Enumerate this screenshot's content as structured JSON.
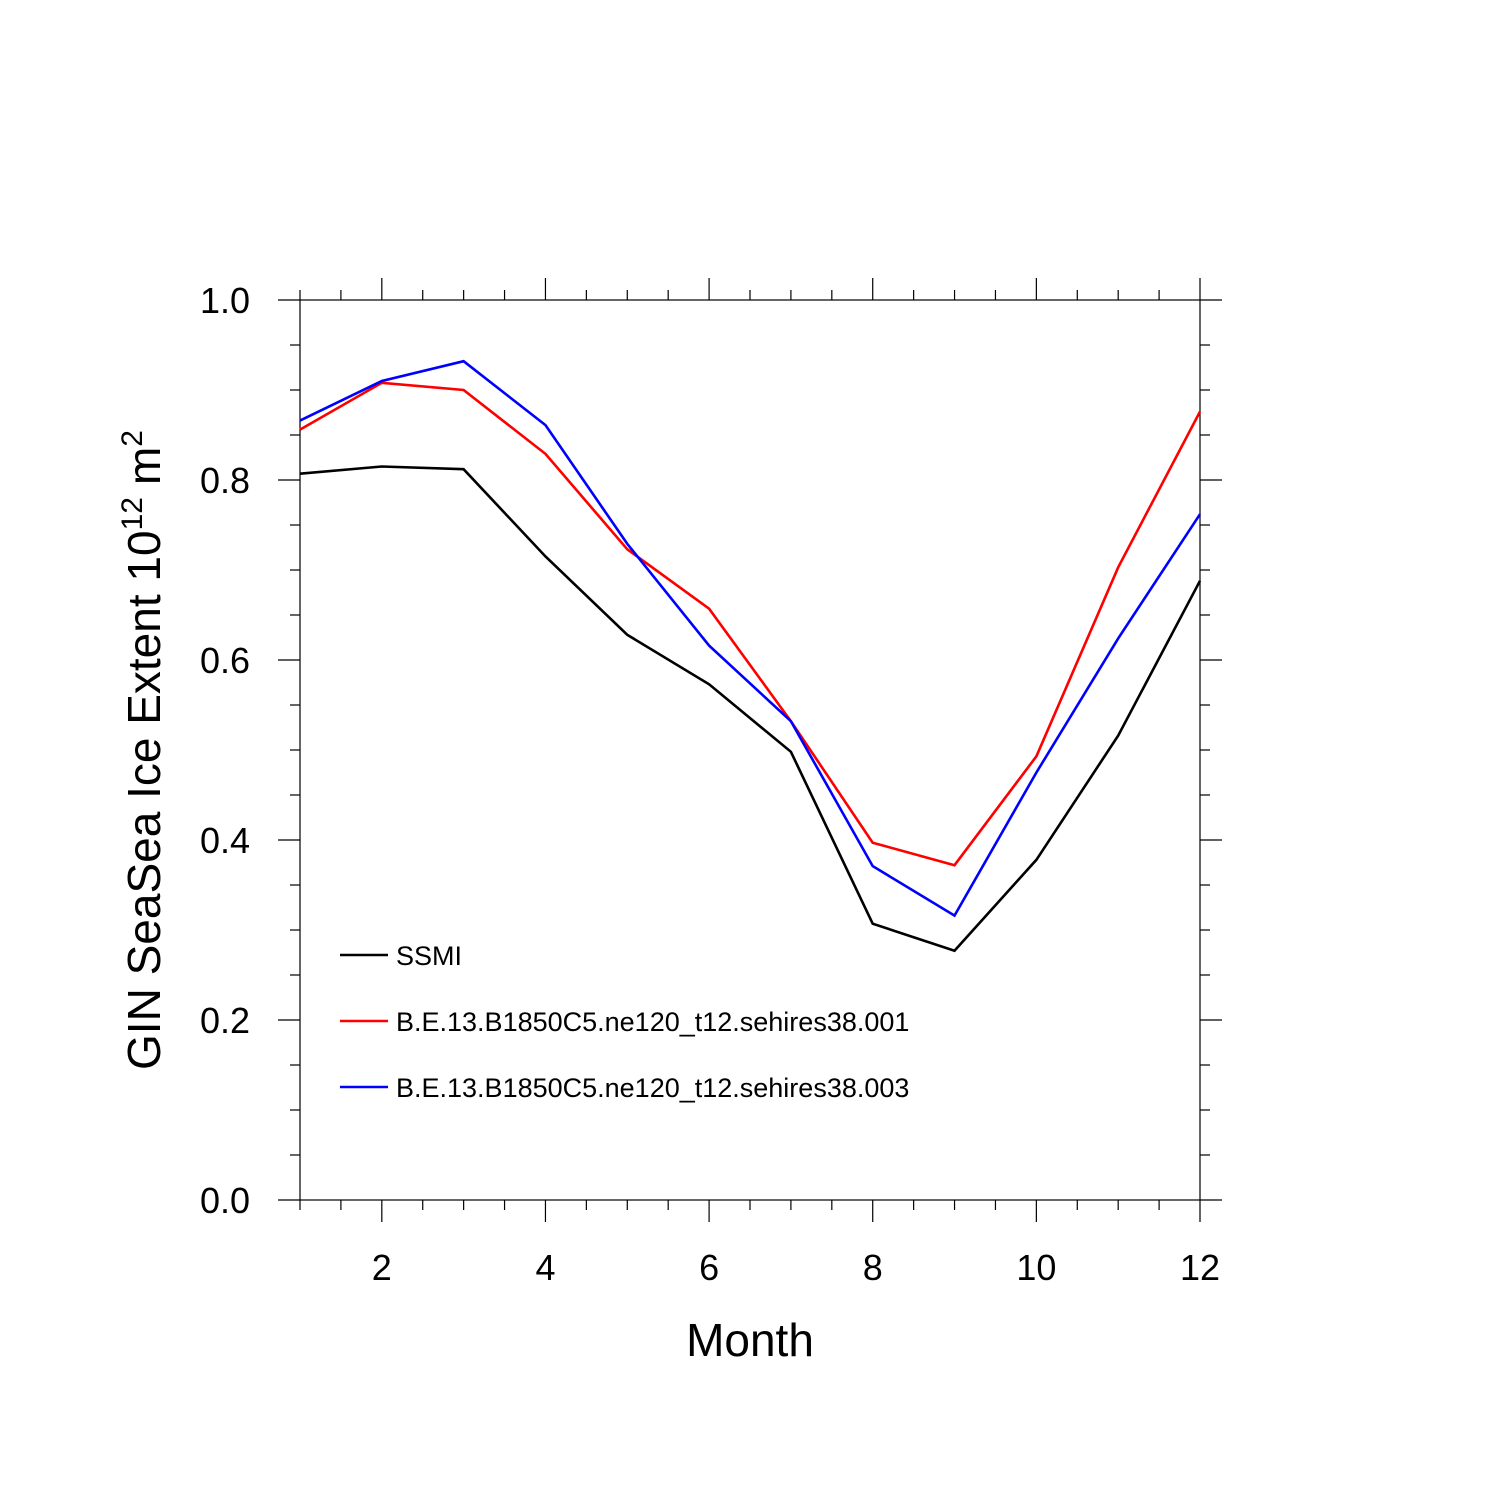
{
  "chart_data": {
    "type": "line",
    "title": "",
    "xlabel": "Month",
    "ylabel": {
      "main": "GIN SeaSea Ice Extent 10",
      "exponent": "12",
      "unit": "m",
      "unit_exponent": "2"
    },
    "xlim": [
      1,
      12
    ],
    "ylim": [
      0.0,
      1.0
    ],
    "x_ticks": [
      {
        "value": 2,
        "label": "2"
      },
      {
        "value": 4,
        "label": "4"
      },
      {
        "value": 6,
        "label": "6"
      },
      {
        "value": 8,
        "label": "8"
      },
      {
        "value": 10,
        "label": "10"
      },
      {
        "value": 12,
        "label": "12"
      }
    ],
    "y_ticks": [
      {
        "value": 0.0,
        "label": "0.0"
      },
      {
        "value": 0.2,
        "label": "0.2"
      },
      {
        "value": 0.4,
        "label": "0.4"
      },
      {
        "value": 0.6,
        "label": "0.6"
      },
      {
        "value": 0.8,
        "label": "0.8"
      },
      {
        "value": 1.0,
        "label": "1.0"
      }
    ],
    "x_minor_step": 0.5,
    "y_minor_step": 0.05,
    "grid": false,
    "legend_position": "lower-left",
    "x": [
      1,
      2,
      3,
      4,
      5,
      6,
      7,
      8,
      9,
      10,
      11,
      12
    ],
    "series": [
      {
        "name": "SSMI",
        "color": "#000000",
        "values": [
          0.807,
          0.815,
          0.812,
          0.715,
          0.628,
          0.573,
          0.498,
          0.307,
          0.277,
          0.378,
          0.516,
          0.688
        ]
      },
      {
        "name": "B.E.13.B1850C5.ne120_t12.sehires38.001",
        "color": "#ff0000",
        "values": [
          0.856,
          0.908,
          0.9,
          0.829,
          0.723,
          0.657,
          0.532,
          0.397,
          0.372,
          0.493,
          0.703,
          0.876
        ]
      },
      {
        "name": "B.E.13.B1850C5.ne120_t12.sehires38.003",
        "color": "#0000ff",
        "values": [
          0.866,
          0.91,
          0.932,
          0.861,
          0.729,
          0.616,
          0.532,
          0.371,
          0.316,
          0.475,
          0.624,
          0.762
        ]
      }
    ]
  }
}
